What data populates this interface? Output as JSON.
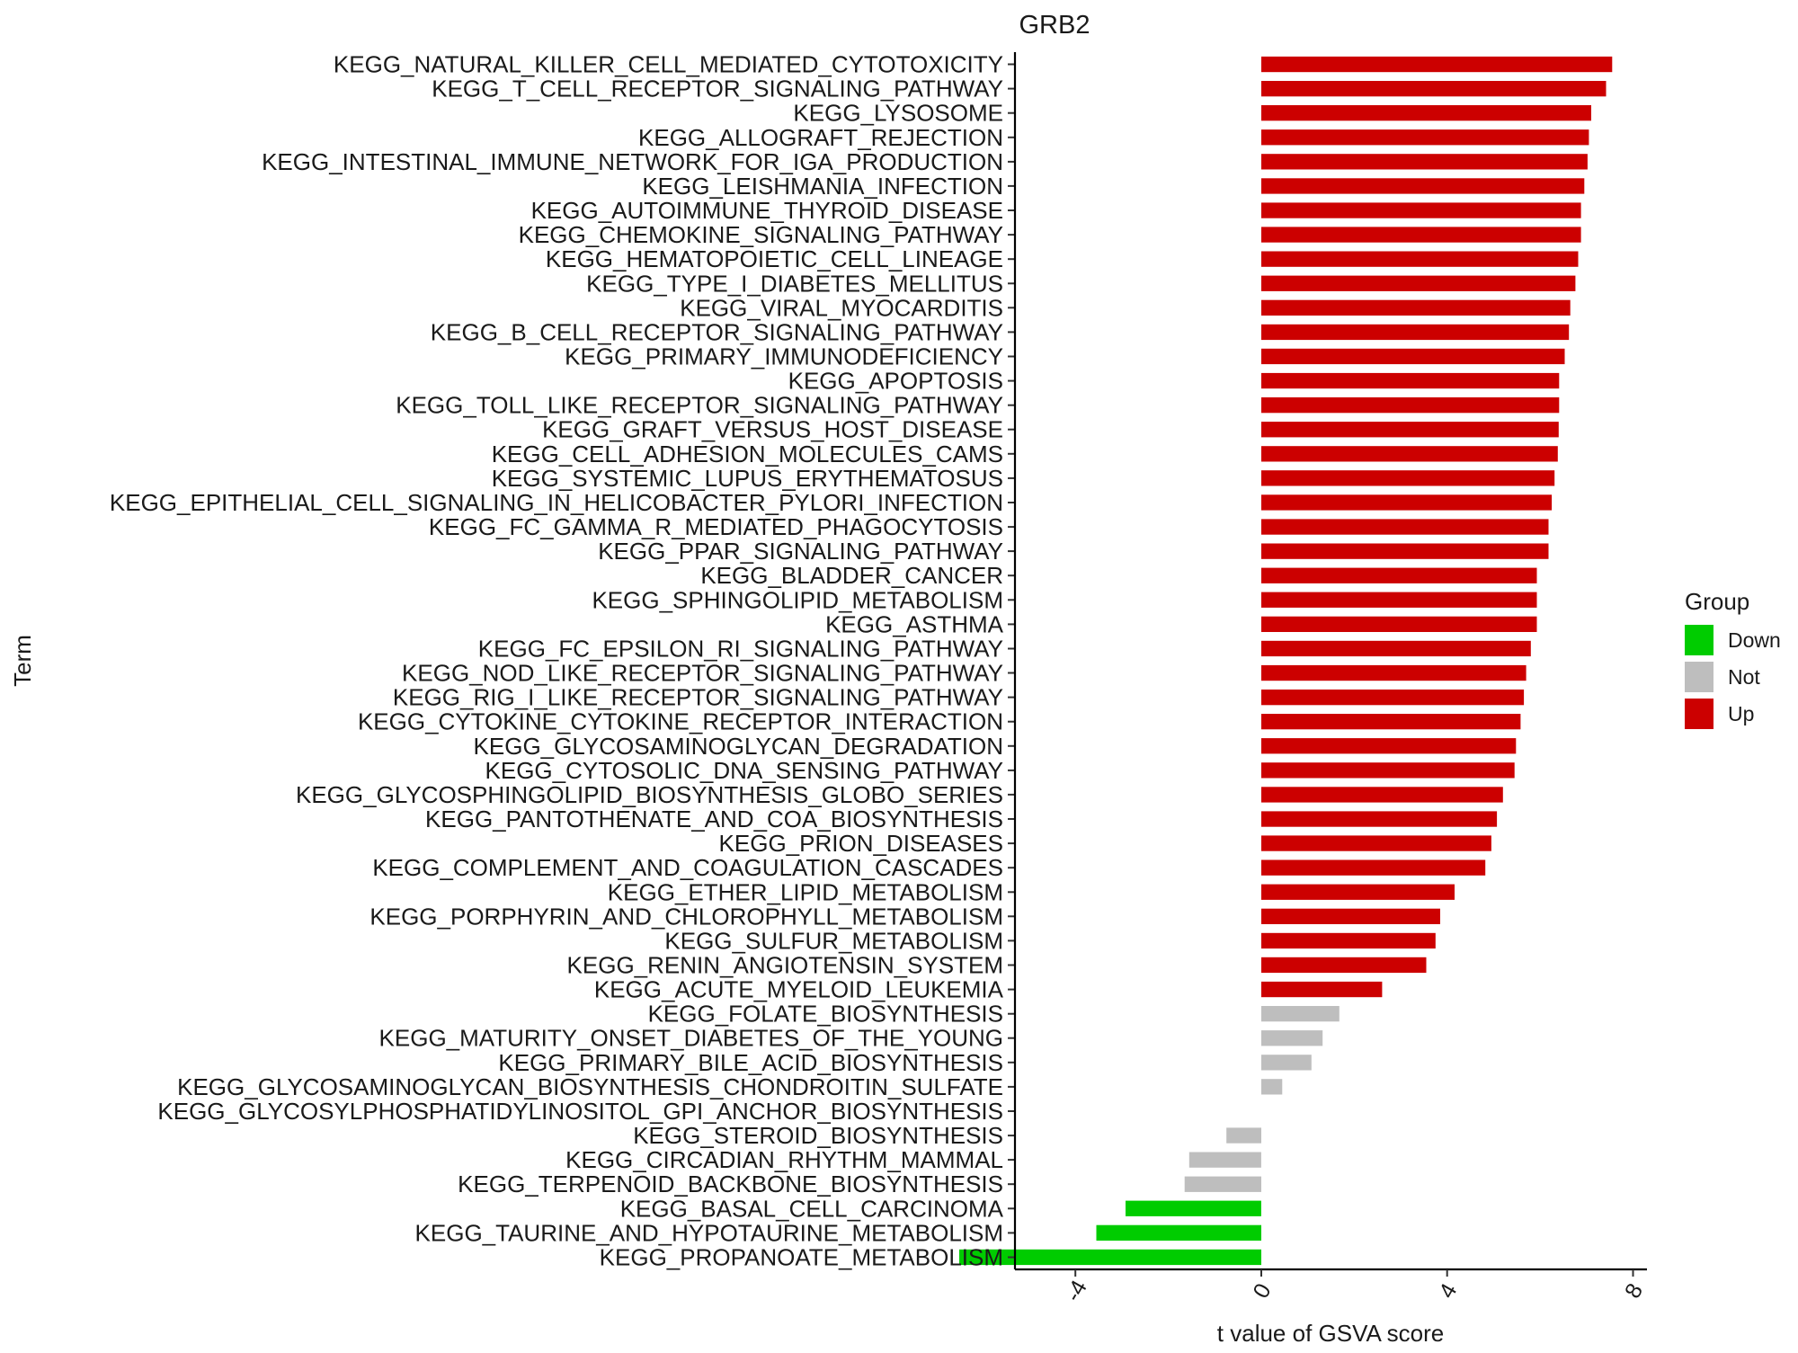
{
  "chart_data": {
    "type": "bar",
    "orientation": "horizontal",
    "title": "GRB2",
    "xlabel": "t value of GSVA score",
    "ylabel": "Term",
    "xlim": [
      -5.3,
      8.3
    ],
    "xticks": [
      -4,
      0,
      4,
      8
    ],
    "xtick_labels": [
      "-4",
      "0",
      "4",
      "8"
    ],
    "grid": false,
    "legend": {
      "title": "Group",
      "position": "right",
      "entries": [
        {
          "name": "Down",
          "color": "#00CC00"
        },
        {
          "name": "Not",
          "color": "#BEBEBE"
        },
        {
          "name": "Up",
          "color": "#CC0000"
        }
      ]
    },
    "bars": [
      {
        "term": "KEGG_NATURAL_KILLER_CELL_MEDIATED_CYTOTOXICITY",
        "value": 7.55,
        "group": "Up"
      },
      {
        "term": "KEGG_T_CELL_RECEPTOR_SIGNALING_PATHWAY",
        "value": 7.42,
        "group": "Up"
      },
      {
        "term": "KEGG_LYSOSOME",
        "value": 7.1,
        "group": "Up"
      },
      {
        "term": "KEGG_ALLOGRAFT_REJECTION",
        "value": 7.05,
        "group": "Up"
      },
      {
        "term": "KEGG_INTESTINAL_IMMUNE_NETWORK_FOR_IGA_PRODUCTION",
        "value": 7.02,
        "group": "Up"
      },
      {
        "term": "KEGG_LEISHMANIA_INFECTION",
        "value": 6.95,
        "group": "Up"
      },
      {
        "term": "KEGG_AUTOIMMUNE_THYROID_DISEASE",
        "value": 6.88,
        "group": "Up"
      },
      {
        "term": "KEGG_CHEMOKINE_SIGNALING_PATHWAY",
        "value": 6.88,
        "group": "Up"
      },
      {
        "term": "KEGG_HEMATOPOIETIC_CELL_LINEAGE",
        "value": 6.82,
        "group": "Up"
      },
      {
        "term": "KEGG_TYPE_I_DIABETES_MELLITUS",
        "value": 6.76,
        "group": "Up"
      },
      {
        "term": "KEGG_VIRAL_MYOCARDITIS",
        "value": 6.65,
        "group": "Up"
      },
      {
        "term": "KEGG_B_CELL_RECEPTOR_SIGNALING_PATHWAY",
        "value": 6.62,
        "group": "Up"
      },
      {
        "term": "KEGG_PRIMARY_IMMUNODEFICIENCY",
        "value": 6.53,
        "group": "Up"
      },
      {
        "term": "KEGG_APOPTOSIS",
        "value": 6.41,
        "group": "Up"
      },
      {
        "term": "KEGG_TOLL_LIKE_RECEPTOR_SIGNALING_PATHWAY",
        "value": 6.41,
        "group": "Up"
      },
      {
        "term": "KEGG_GRAFT_VERSUS_HOST_DISEASE",
        "value": 6.4,
        "group": "Up"
      },
      {
        "term": "KEGG_CELL_ADHESION_MOLECULES_CAMS",
        "value": 6.38,
        "group": "Up"
      },
      {
        "term": "KEGG_SYSTEMIC_LUPUS_ERYTHEMATOSUS",
        "value": 6.31,
        "group": "Up"
      },
      {
        "term": "KEGG_EPITHELIAL_CELL_SIGNALING_IN_HELICOBACTER_PYLORI_INFECTION",
        "value": 6.25,
        "group": "Up"
      },
      {
        "term": "KEGG_FC_GAMMA_R_MEDIATED_PHAGOCYTOSIS",
        "value": 6.18,
        "group": "Up"
      },
      {
        "term": "KEGG_PPAR_SIGNALING_PATHWAY",
        "value": 6.18,
        "group": "Up"
      },
      {
        "term": "KEGG_BLADDER_CANCER",
        "value": 5.93,
        "group": "Up"
      },
      {
        "term": "KEGG_SPHINGOLIPID_METABOLISM",
        "value": 5.93,
        "group": "Up"
      },
      {
        "term": "KEGG_ASTHMA",
        "value": 5.93,
        "group": "Up"
      },
      {
        "term": "KEGG_FC_EPSILON_RI_SIGNALING_PATHWAY",
        "value": 5.8,
        "group": "Up"
      },
      {
        "term": "KEGG_NOD_LIKE_RECEPTOR_SIGNALING_PATHWAY",
        "value": 5.7,
        "group": "Up"
      },
      {
        "term": "KEGG_RIG_I_LIKE_RECEPTOR_SIGNALING_PATHWAY",
        "value": 5.65,
        "group": "Up"
      },
      {
        "term": "KEGG_CYTOKINE_CYTOKINE_RECEPTOR_INTERACTION",
        "value": 5.58,
        "group": "Up"
      },
      {
        "term": "KEGG_GLYCOSAMINOGLYCAN_DEGRADATION",
        "value": 5.48,
        "group": "Up"
      },
      {
        "term": "KEGG_CYTOSOLIC_DNA_SENSING_PATHWAY",
        "value": 5.45,
        "group": "Up"
      },
      {
        "term": "KEGG_GLYCOSPHINGOLIPID_BIOSYNTHESIS_GLOBO_SERIES",
        "value": 5.2,
        "group": "Up"
      },
      {
        "term": "KEGG_PANTOTHENATE_AND_COA_BIOSYNTHESIS",
        "value": 5.07,
        "group": "Up"
      },
      {
        "term": "KEGG_PRION_DISEASES",
        "value": 4.95,
        "group": "Up"
      },
      {
        "term": "KEGG_COMPLEMENT_AND_COAGULATION_CASCADES",
        "value": 4.82,
        "group": "Up"
      },
      {
        "term": "KEGG_ETHER_LIPID_METABOLISM",
        "value": 4.16,
        "group": "Up"
      },
      {
        "term": "KEGG_PORPHYRIN_AND_CHLOROPHYLL_METABOLISM",
        "value": 3.85,
        "group": "Up"
      },
      {
        "term": "KEGG_SULFUR_METABOLISM",
        "value": 3.75,
        "group": "Up"
      },
      {
        "term": "KEGG_RENIN_ANGIOTENSIN_SYSTEM",
        "value": 3.55,
        "group": "Up"
      },
      {
        "term": "KEGG_ACUTE_MYELOID_LEUKEMIA",
        "value": 2.6,
        "group": "Up"
      },
      {
        "term": "KEGG_FOLATE_BIOSYNTHESIS",
        "value": 1.68,
        "group": "Not"
      },
      {
        "term": "KEGG_MATURITY_ONSET_DIABETES_OF_THE_YOUNG",
        "value": 1.32,
        "group": "Not"
      },
      {
        "term": "KEGG_PRIMARY_BILE_ACID_BIOSYNTHESIS",
        "value": 1.08,
        "group": "Not"
      },
      {
        "term": "KEGG_GLYCOSAMINOGLYCAN_BIOSYNTHESIS_CHONDROITIN_SULFATE",
        "value": 0.45,
        "group": "Not"
      },
      {
        "term": "KEGG_GLYCOSYLPHOSPHATIDYLINOSITOL_GPI_ANCHOR_BIOSYNTHESIS",
        "value": 0.0,
        "group": "Not"
      },
      {
        "term": "KEGG_STEROID_BIOSYNTHESIS",
        "value": -0.75,
        "group": "Not"
      },
      {
        "term": "KEGG_CIRCADIAN_RHYTHM_MAMMAL",
        "value": -1.55,
        "group": "Not"
      },
      {
        "term": "KEGG_TERPENOID_BACKBONE_BIOSYNTHESIS",
        "value": -1.65,
        "group": "Not"
      },
      {
        "term": "KEGG_BASAL_CELL_CARCINOMA",
        "value": -2.92,
        "group": "Down"
      },
      {
        "term": "KEGG_TAURINE_AND_HYPOTAURINE_METABOLISM",
        "value": -3.55,
        "group": "Down"
      },
      {
        "term": "KEGG_PROPANOATE_METABOLISM",
        "value": -6.5,
        "group": "Down"
      }
    ]
  }
}
